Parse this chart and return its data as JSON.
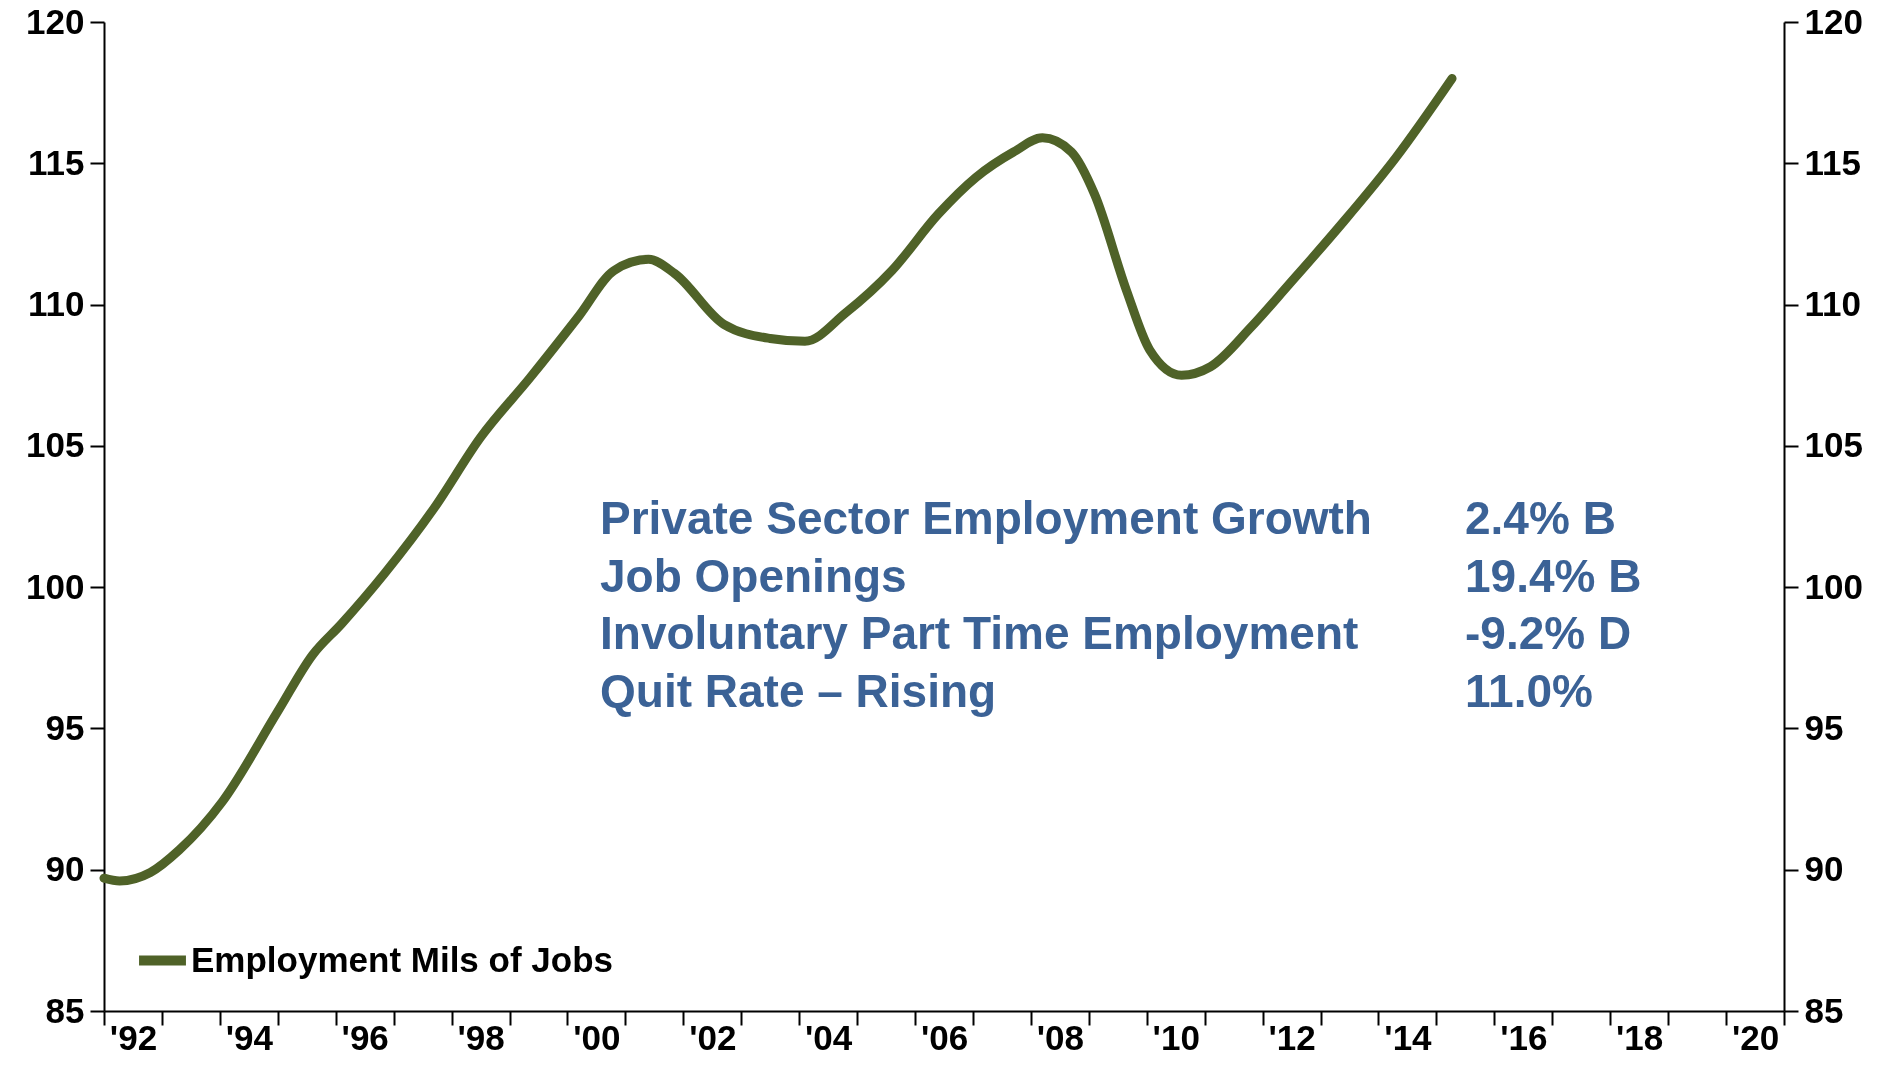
{
  "chart_data": {
    "type": "line",
    "x": [
      1991.5,
      1991.77,
      1992.3,
      1992.8,
      1993.54,
      1994.5,
      1995.1,
      1995.6,
      1996.35,
      1997.2,
      1998.0,
      1998.85,
      1999.7,
      2000.3,
      2000.9,
      2001.35,
      2002.2,
      2003.0,
      2003.6,
      2004.3,
      2005.1,
      2005.9,
      2006.55,
      2007.2,
      2007.7,
      2008.2,
      2008.6,
      2009.15,
      2009.55,
      2010.1,
      2010.6,
      2011.3,
      2011.95,
      2012.8,
      2013.8,
      2014.77
    ],
    "series": [
      {
        "name": "Employment Mils of Jobs",
        "color": "#4f6228",
        "values": [
          89.7,
          89.6,
          89.9,
          90.7,
          92.4,
          95.6,
          97.6,
          98.7,
          100.5,
          102.8,
          105.3,
          107.4,
          109.6,
          111.2,
          111.6,
          111.1,
          109.3,
          108.8,
          108.7,
          109.7,
          111.2,
          113.2,
          114.5,
          115.4,
          115.9,
          115.4,
          113.9,
          110.5,
          108.4,
          107.5,
          107.8,
          109.2,
          110.7,
          112.7,
          115.2,
          118.0
        ]
      }
    ],
    "xlim": [
      1991.5,
      2020.5
    ],
    "xticks": [
      {
        "value": 1991.5,
        "label": null
      },
      {
        "value": 1992,
        "label": "'92"
      },
      {
        "value": 1992.5,
        "label": null
      },
      {
        "value": 1993.5,
        "label": null
      },
      {
        "value": 1994,
        "label": "'94"
      },
      {
        "value": 1994.5,
        "label": null
      },
      {
        "value": 1995.5,
        "label": null
      },
      {
        "value": 1996,
        "label": "'96"
      },
      {
        "value": 1996.5,
        "label": null
      },
      {
        "value": 1997.5,
        "label": null
      },
      {
        "value": 1998,
        "label": "'98"
      },
      {
        "value": 1998.5,
        "label": null
      },
      {
        "value": 1999.5,
        "label": null
      },
      {
        "value": 2000,
        "label": "'00"
      },
      {
        "value": 2000.5,
        "label": null
      },
      {
        "value": 2001.5,
        "label": null
      },
      {
        "value": 2002,
        "label": "'02"
      },
      {
        "value": 2002.5,
        "label": null
      },
      {
        "value": 2003.5,
        "label": null
      },
      {
        "value": 2004,
        "label": "'04"
      },
      {
        "value": 2004.5,
        "label": null
      },
      {
        "value": 2005.5,
        "label": null
      },
      {
        "value": 2006,
        "label": "'06"
      },
      {
        "value": 2006.5,
        "label": null
      },
      {
        "value": 2007.5,
        "label": null
      },
      {
        "value": 2008,
        "label": "'08"
      },
      {
        "value": 2008.5,
        "label": null
      },
      {
        "value": 2009.5,
        "label": null
      },
      {
        "value": 2010,
        "label": "'10"
      },
      {
        "value": 2010.5,
        "label": null
      },
      {
        "value": 2011.5,
        "label": null
      },
      {
        "value": 2012,
        "label": "'12"
      },
      {
        "value": 2012.5,
        "label": null
      },
      {
        "value": 2013.5,
        "label": null
      },
      {
        "value": 2014,
        "label": "'14"
      },
      {
        "value": 2014.5,
        "label": null
      },
      {
        "value": 2015.5,
        "label": null
      },
      {
        "value": 2016,
        "label": "'16"
      },
      {
        "value": 2016.5,
        "label": null
      },
      {
        "value": 2017.5,
        "label": null
      },
      {
        "value": 2018,
        "label": "'18"
      },
      {
        "value": 2018.5,
        "label": null
      },
      {
        "value": 2019.5,
        "label": null
      },
      {
        "value": 2020,
        "label": "'20"
      },
      {
        "value": 2020.5,
        "label": null
      }
    ],
    "ylim": [
      85,
      120
    ],
    "yticks": [
      85,
      90,
      95,
      100,
      105,
      110,
      115,
      120
    ],
    "y2lim": [
      85,
      120
    ],
    "y2ticks": [
      85,
      90,
      95,
      100,
      105,
      110,
      115,
      120
    ],
    "annotations": [
      "Private Sector Employment Growth",
      "2.4%  B",
      "Job Openings",
      "19.4% B",
      "Involuntary Part Time Employment",
      "-9.2% D",
      "Quit Rate – Rising",
      "11.0%"
    ],
    "legend": "bottom left",
    "grid": false,
    "marker": "none",
    "line_style": "solid"
  }
}
